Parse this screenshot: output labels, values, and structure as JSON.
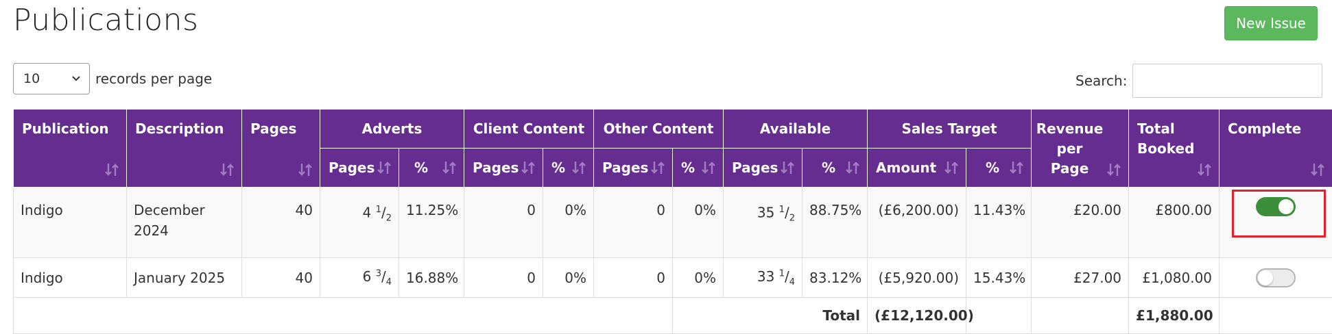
{
  "page": {
    "title": "Publications",
    "new_issue_label": "New Issue"
  },
  "length": {
    "value": "10",
    "label": "records per page"
  },
  "search": {
    "label": "Search:",
    "value": ""
  },
  "headers": {
    "publication": "Publication",
    "description": "Description",
    "pages": "Pages",
    "adverts": "Adverts",
    "client_content": "Client Content",
    "other_content": "Other Content",
    "available": "Available",
    "sales_target": "Sales Target",
    "revenue_per_page_1": "Revenue",
    "revenue_per_page_2": "per",
    "revenue_per_page_3": "Page",
    "total_booked_1": "Total",
    "total_booked_2": "Booked",
    "complete": "Complete",
    "sub_pages": "Pages",
    "sub_pct": "%",
    "sub_amount": "Amount"
  },
  "rows": [
    {
      "publication": "Indigo",
      "description": "December 2024",
      "pages": "40",
      "adverts_whole": "4",
      "adverts_num": "1",
      "adverts_den": "2",
      "adverts_pct": "11.25%",
      "client_pages": "0",
      "client_pct": "0%",
      "other_pages": "0",
      "other_pct": "0%",
      "avail_whole": "35",
      "avail_num": "1",
      "avail_den": "2",
      "avail_pct": "88.75%",
      "target_amount": "(£6,200.00)",
      "target_pct": "11.43%",
      "revenue_per_page": "£20.00",
      "total_booked": "£800.00",
      "complete": true
    },
    {
      "publication": "Indigo",
      "description": "January 2025",
      "pages": "40",
      "adverts_whole": "6",
      "adverts_num": "3",
      "adverts_den": "4",
      "adverts_pct": "16.88%",
      "client_pages": "0",
      "client_pct": "0%",
      "other_pages": "0",
      "other_pct": "0%",
      "avail_whole": "33",
      "avail_num": "1",
      "avail_den": "4",
      "avail_pct": "83.12%",
      "target_amount": "(£5,920.00)",
      "target_pct": "15.43%",
      "revenue_per_page": "£27.00",
      "total_booked": "£1,080.00",
      "complete": false
    }
  ],
  "totals": {
    "label": "Total",
    "target_amount": "(£12,120.00)",
    "total_booked": "£1,880.00"
  },
  "colors": {
    "header_bg": "#662d91",
    "button_green": "#5cb85c",
    "negative_red": "#e02020",
    "toggle_on": "#3c8f3a",
    "highlight": "#e0202a"
  }
}
